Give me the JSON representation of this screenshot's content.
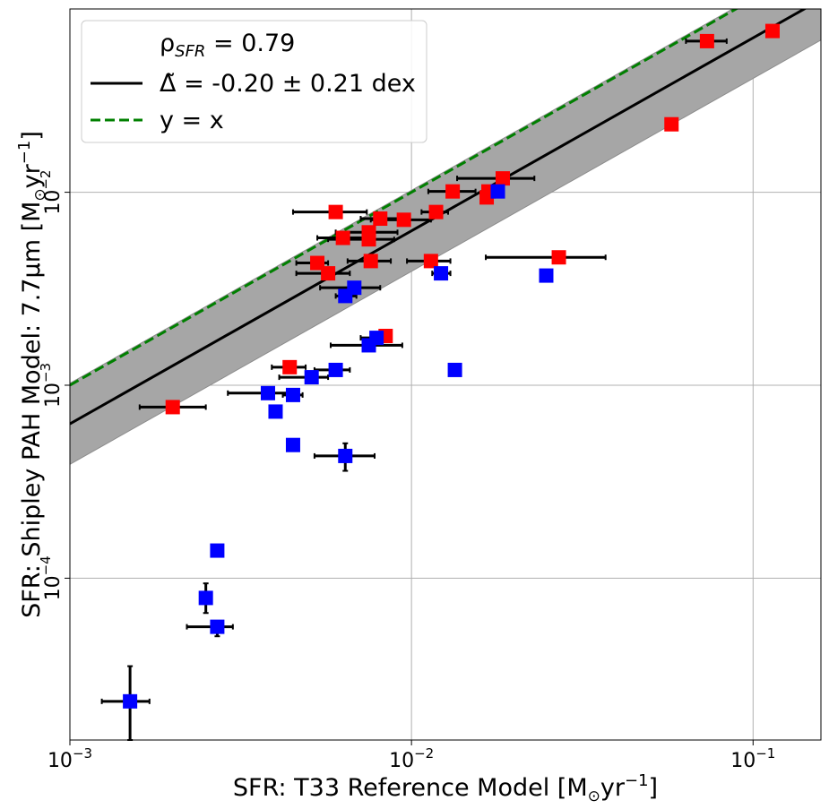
{
  "chart_data": {
    "type": "scatter",
    "xscale": "log",
    "yscale": "log",
    "xlim": [
      0.001,
      0.158
    ],
    "ylim": [
      1.45e-05,
      0.0891
    ],
    "grid": true,
    "legend_position": "top-left",
    "xlabel": "SFR: T33 Reference Model [M",
    "xlabel_sub": "⊙",
    "xlabel_tail": "yr",
    "xlabel_sup": "−1",
    "xlabel_close": "]",
    "ylabel": "SFR: Shipley PAH Model: 7.7μm [M",
    "ylabel_sub": "⊙",
    "ylabel_tail": "yr",
    "ylabel_sup": "−1",
    "ylabel_close": "]",
    "x_ticks": [
      {
        "value": 0.001,
        "base": "10",
        "exp": "−3"
      },
      {
        "value": 0.01,
        "base": "10",
        "exp": "−2"
      },
      {
        "value": 0.1,
        "base": "10",
        "exp": "−1"
      }
    ],
    "y_ticks": [
      {
        "value": 0.0001,
        "base": "10",
        "exp": "−4"
      },
      {
        "value": 0.001,
        "base": "10",
        "exp": "−3"
      },
      {
        "value": 0.01,
        "base": "10",
        "exp": "−2"
      }
    ],
    "legend": {
      "rho_prefix": "ρ",
      "rho_sub": "SFR",
      "rho_value": " = 0.79",
      "delta_symbol": "Δ̃",
      "delta_text": " = -0.20 ± 0.21 dex",
      "yx_text": "y = x"
    },
    "fit": {
      "offset_dex": -0.2,
      "scatter_dex": 0.21
    },
    "colors": {
      "red": "#ff0000",
      "blue": "#0000ff",
      "fit": "#000000",
      "identity": "#008000",
      "band": "#a6a6a6",
      "grid": "#b0b0b0"
    },
    "series": [
      {
        "color": "red",
        "points": [
          {
            "x": 0.0733,
            "y": 0.0607,
            "xerr": [
              0.0636,
              0.0837
            ]
          },
          {
            "x": 0.114,
            "y": 0.0685
          },
          {
            "x": 0.0577,
            "y": 0.0225
          },
          {
            "x": 0.0185,
            "y": 0.0118,
            "xerr": [
              0.0136,
              0.0229
            ]
          },
          {
            "x": 0.0132,
            "y": 0.0101,
            "xerr": [
              0.0112,
              0.0154
            ]
          },
          {
            "x": 0.0168,
            "y": 0.0101
          },
          {
            "x": 0.0166,
            "y": 0.0094
          },
          {
            "x": 0.006,
            "y": 0.0079,
            "xerr": [
              0.0045,
              0.0074
            ]
          },
          {
            "x": 0.0118,
            "y": 0.0079,
            "xerr": [
              0.0107,
              0.0128
            ]
          },
          {
            "x": 0.0081,
            "y": 0.0073,
            "xerr": [
              0.0071,
              0.0092
            ]
          },
          {
            "x": 0.0095,
            "y": 0.0072,
            "xerr": [
              0.0076,
              0.0114
            ]
          },
          {
            "x": 0.0075,
            "y": 0.0062,
            "xerr": [
              0.006,
              0.0091
            ]
          },
          {
            "x": 0.0063,
            "y": 0.0058,
            "xerr": [
              0.0053,
              0.0074
            ]
          },
          {
            "x": 0.0075,
            "y": 0.0057,
            "xerr": [
              0.0057,
              0.0089
            ]
          },
          {
            "x": 0.0076,
            "y": 0.0044,
            "xerr": [
              0.0065,
              0.0087
            ]
          },
          {
            "x": 0.0114,
            "y": 0.0044,
            "xerr": [
              0.0097,
              0.013
            ]
          },
          {
            "x": 0.0053,
            "y": 0.0043,
            "xerr": [
              0.0046,
              0.0057
            ]
          },
          {
            "x": 0.0057,
            "y": 0.0038,
            "xerr": [
              0.0046,
              0.0066
            ]
          },
          {
            "x": 0.027,
            "y": 0.0046,
            "xerr": [
              0.0165,
              0.037
            ]
          },
          {
            "x": 0.0084,
            "y": 0.0018,
            "xerr": [
              0.0076,
              0.0087
            ]
          },
          {
            "x": 0.0044,
            "y": 0.00124,
            "xerr": [
              0.0039,
              0.0049
            ]
          },
          {
            "x": 0.002,
            "y": 0.00077,
            "xerr": [
              0.0016,
              0.0025
            ]
          }
        ]
      },
      {
        "color": "blue",
        "points": [
          {
            "x": 0.0179,
            "y": 0.0101
          },
          {
            "x": 0.0122,
            "y": 0.0038,
            "xerr": [
              0.0115,
              0.013
            ]
          },
          {
            "x": 0.0248,
            "y": 0.0037
          },
          {
            "x": 0.0068,
            "y": 0.0032,
            "xerr": [
              0.0054,
              0.0081
            ]
          },
          {
            "x": 0.0064,
            "y": 0.0029,
            "xerr": [
              0.006,
              0.0069
            ]
          },
          {
            "x": 0.0079,
            "y": 0.00176,
            "xerr": [
              0.0071,
              0.0083
            ]
          },
          {
            "x": 0.0075,
            "y": 0.00161,
            "xerr": [
              0.0058,
              0.0094
            ]
          },
          {
            "x": 0.0134,
            "y": 0.0012
          },
          {
            "x": 0.006,
            "y": 0.0012,
            "xerr": [
              0.0052,
              0.0066
            ]
          },
          {
            "x": 0.0051,
            "y": 0.0011,
            "xerr": [
              0.0041,
              0.0057
            ]
          },
          {
            "x": 0.0038,
            "y": 0.00091,
            "xerr": [
              0.0029,
              0.0046
            ]
          },
          {
            "x": 0.0045,
            "y": 0.00089,
            "xerr": [
              0.0042,
              0.0048
            ]
          },
          {
            "x": 0.004,
            "y": 0.00073
          },
          {
            "x": 0.0045,
            "y": 0.00049
          },
          {
            "x": 0.0064,
            "y": 0.00043,
            "xerr": [
              0.0052,
              0.0078
            ],
            "yerr": [
              0.00036,
              0.0005
            ]
          },
          {
            "x": 0.0027,
            "y": 0.000139
          },
          {
            "x": 0.0025,
            "y": 7.9e-05,
            "yerr": [
              6.6e-05,
              9.4e-05
            ]
          },
          {
            "x": 0.0027,
            "y": 5.6e-05,
            "xerr": [
              0.0022,
              0.003
            ],
            "yerr": [
              5e-05,
              6e-05
            ]
          },
          {
            "x": 0.0015,
            "y": 2.3e-05,
            "xerr": [
              0.00124,
              0.00171
            ],
            "yerr": [
              1.45e-05,
              3.5e-05
            ]
          }
        ]
      }
    ]
  }
}
